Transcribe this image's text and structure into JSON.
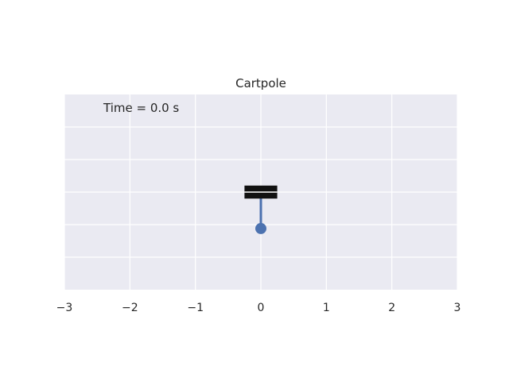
{
  "chart_data": {
    "type": "scatter",
    "title": "Cartpole",
    "annotation": "Time = 0.0 s",
    "xlabel": "",
    "ylabel": "",
    "xlim": [
      -3,
      3
    ],
    "ylim": [
      -1.5,
      1.5
    ],
    "xticks": [
      -3,
      -2,
      -1,
      0,
      1,
      2,
      3
    ],
    "xtick_labels": [
      "−3",
      "−2",
      "−1",
      "0",
      "1",
      "2",
      "3"
    ],
    "yticks_hidden": true,
    "grid": true,
    "cart": {
      "x": 0.0,
      "y": 0.0,
      "width": 0.5,
      "height": 0.2
    },
    "pole": {
      "x": [
        0.0,
        0.0
      ],
      "y": [
        0.0,
        -0.56
      ]
    },
    "bob": {
      "x": 0.0,
      "y": -0.56
    },
    "colors": {
      "axes_bg": "#eaeaf2",
      "grid": "#ffffff",
      "cart": "#111111",
      "pole": "#4c72b0",
      "bob": "#4c72b0"
    }
  }
}
